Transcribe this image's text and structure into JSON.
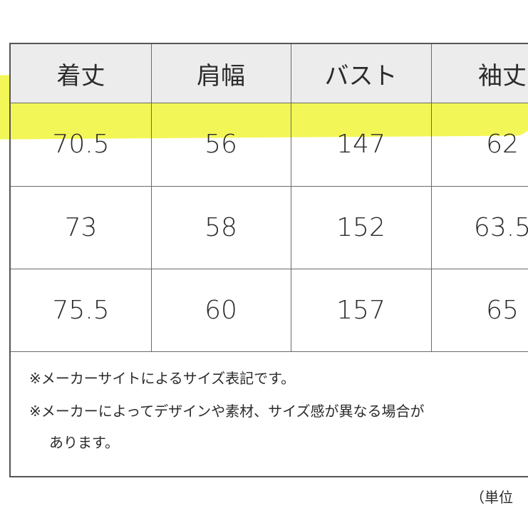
{
  "table": {
    "headers": [
      "着丈",
      "肩幅",
      "バスト",
      "袖丈"
    ],
    "rows": [
      [
        "70.5",
        "56",
        "147",
        "62"
      ],
      [
        "73",
        "58",
        "152",
        "63.5"
      ],
      [
        "75.5",
        "60",
        "157",
        "65"
      ]
    ],
    "highlighted_row": 0,
    "highlight_color": "#f2f549"
  },
  "notes": {
    "line1": "※メーカーサイトによるサイズ表記です。",
    "line2": "※メーカーによってデザインや素材、サイズ感が異なる場合が",
    "line3": "あります。"
  },
  "unit_label": "（単位"
}
